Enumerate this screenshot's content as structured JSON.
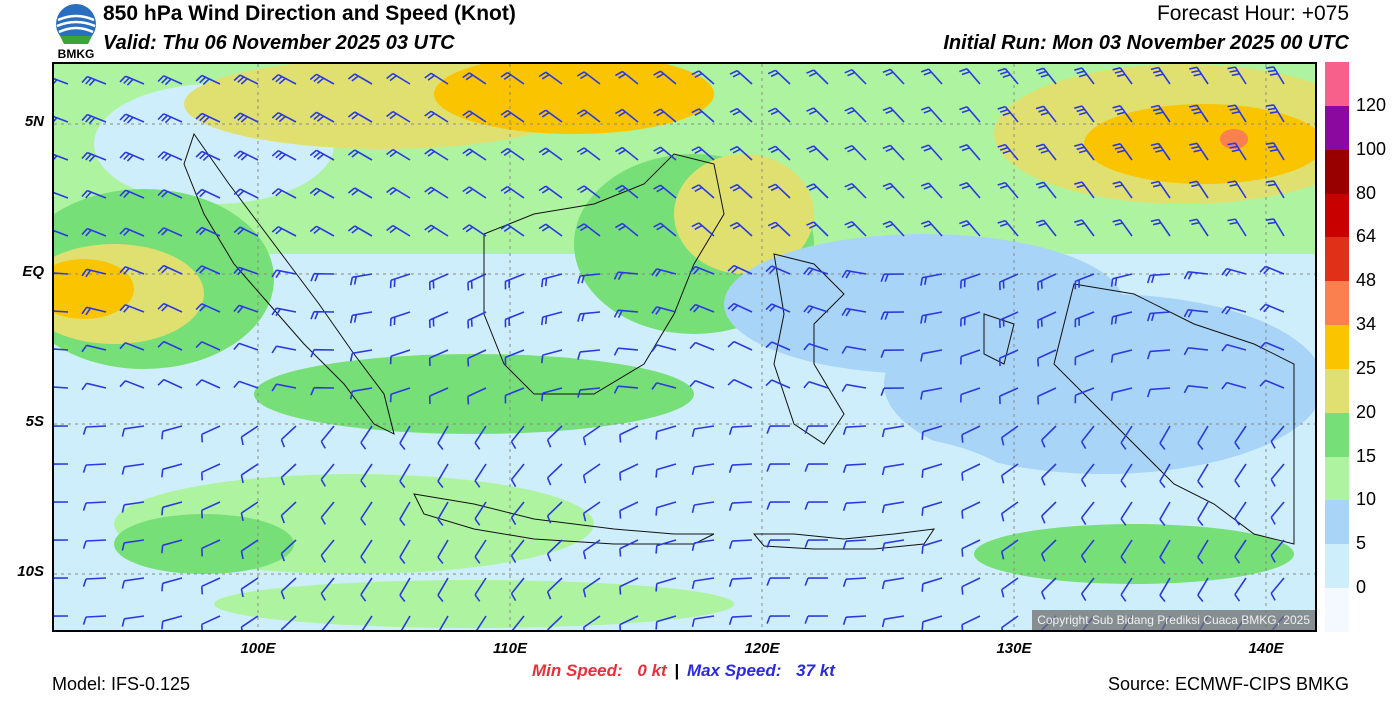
{
  "header": {
    "title": "850 hPa Wind Direction and Speed (Knot)",
    "valid": "Valid: Thu 06 November 2025 03 UTC",
    "forecast_hour": "Forecast Hour: +075",
    "initial_run": "Initial Run: Mon 03 November 2025 00 UTC"
  },
  "logo": {
    "text": "BMKG"
  },
  "axes": {
    "lat_labels": [
      "5N",
      "EQ",
      "5S",
      "10S"
    ],
    "lon_labels": [
      "100E",
      "110E",
      "120E",
      "130E",
      "140E"
    ]
  },
  "colorbar": {
    "labels": [
      "0",
      "5",
      "10",
      "15",
      "20",
      "25",
      "34",
      "48",
      "64",
      "80",
      "100",
      "120"
    ],
    "colors": [
      "#f4f9ff",
      "#cfeefc",
      "#a8d4f7",
      "#aef4a0",
      "#77df77",
      "#e0e070",
      "#fac400",
      "#fa8050",
      "#e03018",
      "#c80000",
      "#980000",
      "#8a0aa0",
      "#f7608a"
    ]
  },
  "footer": {
    "model": "Model: IFS-0.125",
    "min_label": "Min Speed:",
    "min_value": "0 kt",
    "separator": "|",
    "max_label": "Max Speed:",
    "max_value": "37 kt",
    "source": "Source: ECMWF-CIPS BMKG",
    "copyright": "Copyright Sub Bidang Prediksi Cuaca BMKG, 2025"
  },
  "colors": {
    "min_speed": "#e8303a",
    "max_speed": "#2a2ae0",
    "barb": "#2b3ae0"
  }
}
